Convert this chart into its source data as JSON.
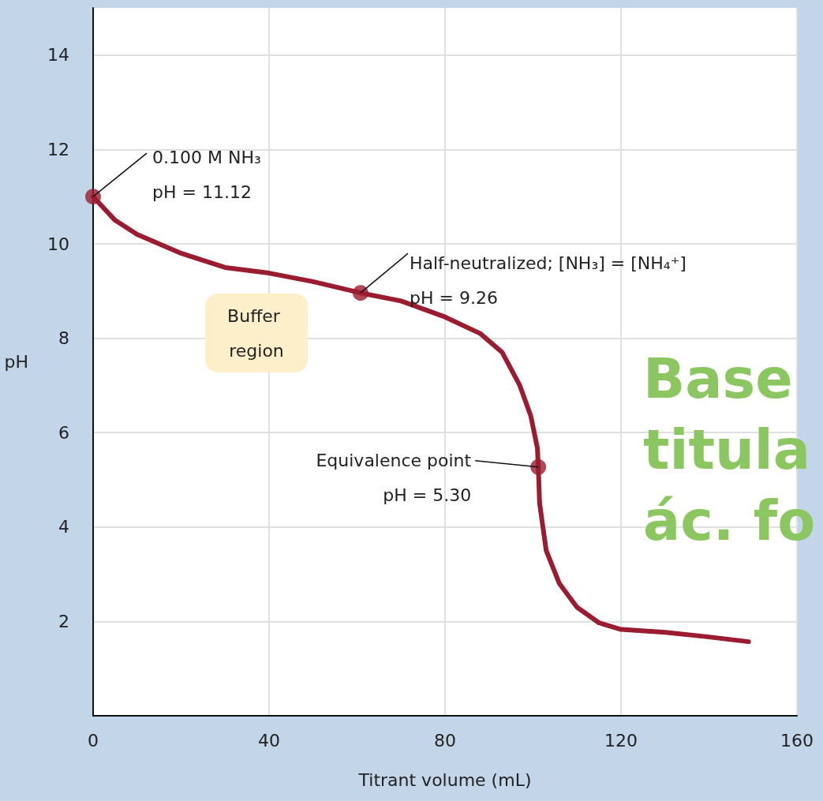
{
  "chart_data": {
    "type": "line",
    "xlabel": "Titrant volume (mL)",
    "ylabel": "pH",
    "xlim": [
      0,
      160
    ],
    "xticks": [
      0,
      40,
      80,
      120,
      160
    ],
    "ylim": [
      0,
      15
    ],
    "yticks": [
      2,
      4,
      6,
      8,
      10,
      12,
      14
    ],
    "grid": true,
    "marker": "none",
    "line_style": "solid",
    "series": [
      {
        "color": "#9b1b30",
        "x": [
          0,
          5,
          10,
          20,
          30,
          40,
          50,
          60.8,
          70,
          80,
          88,
          93,
          97,
          99.5,
          101,
          101.2,
          101.5,
          103,
          106,
          110,
          115,
          120,
          130,
          140,
          149
        ],
        "values": [
          11.0,
          10.5,
          10.2,
          9.8,
          9.5,
          9.38,
          9.2,
          8.96,
          8.79,
          8.45,
          8.1,
          7.7,
          7.0,
          6.35,
          5.67,
          5.27,
          4.5,
          3.5,
          2.8,
          2.3,
          1.97,
          1.83,
          1.77,
          1.67,
          1.57
        ]
      },
      {
        "type": "scatter",
        "marker": "circle",
        "color": "#9b1b30",
        "x": [
          0,
          60.8,
          101.2
        ],
        "values": [
          11.0,
          8.96,
          5.27
        ]
      }
    ],
    "annotations": [
      {
        "text": "0.100 M NH₃\npH = 11.12",
        "x": 0,
        "y": 11.0
      },
      {
        "text": "Half-neutralized; [NH₃] = [NH₄⁺]\npH = 9.26",
        "x": 60.8,
        "y": 8.96
      },
      {
        "text": "Equivalence point\npH = 5.30",
        "x": 101.2,
        "y": 5.27
      },
      "Buffer region",
      "Base",
      "titula",
      "ác. fo"
    ]
  }
}
